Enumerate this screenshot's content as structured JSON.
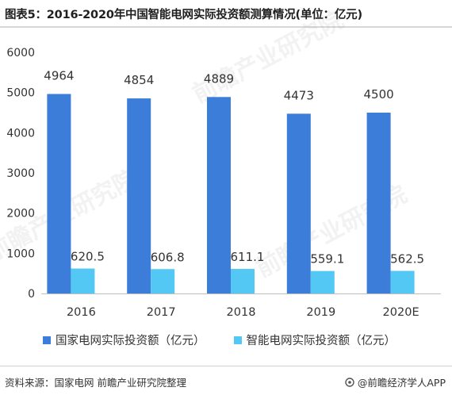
{
  "title": "图表5：2016-2020年中国智能电网实际投资额测算情况(单位：亿元)",
  "source": "资料来源：国家电网 前瞻产业研究院整理",
  "brand": "@前瞻经济学人APP",
  "chart_data": {
    "type": "bar",
    "title": "图表5：2016-2020年中国智能电网实际投资额测算情况(单位：亿元)",
    "categories": [
      "2016",
      "2017",
      "2018",
      "2019",
      "2020E"
    ],
    "series": [
      {
        "name": "国家电网实际投资额（亿元）",
        "color": "#3b7dd8",
        "values": [
          4964,
          4854,
          4889,
          4473,
          4500
        ]
      },
      {
        "name": "智能电网实际投资额（亿元）",
        "color": "#53c8f5",
        "values": [
          620.5,
          606.8,
          611.1,
          559.1,
          562.5
        ]
      }
    ],
    "data_labels": [
      [
        "4964",
        "4854",
        "4889",
        "4473",
        "4500"
      ],
      [
        "620.5",
        "606.8",
        "611.1",
        "559.1",
        "562.5"
      ]
    ],
    "y_ticks": [
      "0",
      "1000",
      "2000",
      "3000",
      "4000",
      "5000",
      "6000"
    ],
    "ylim": [
      0,
      6000
    ],
    "grid": false,
    "legend_position": "bottom-left"
  }
}
